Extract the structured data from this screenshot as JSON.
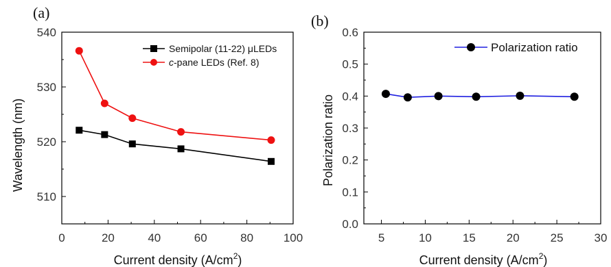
{
  "chart_data": [
    {
      "type": "line",
      "panel_label": "(a)",
      "xlabel_prefix": "Current density (A/cm",
      "xlabel_sup": "2",
      "xlabel_suffix": ")",
      "ylabel": "Wavelength (nm)",
      "xlim": [
        0,
        100
      ],
      "ylim": [
        505,
        540
      ],
      "xticks": [
        0,
        20,
        40,
        60,
        80,
        100
      ],
      "yticks": [
        510,
        520,
        530,
        540
      ],
      "grid": false,
      "legend_position": "top-right",
      "series": [
        {
          "name": "Semipolar (11-22) μLEDs",
          "marker": "square",
          "color": "#000000",
          "x": [
            7.5,
            18.5,
            30.5,
            51.5,
            90.5
          ],
          "y": [
            522.1,
            521.3,
            519.6,
            518.7,
            516.4
          ]
        },
        {
          "name_italic": "c",
          "name": "-pane LEDs (Ref. 8)",
          "marker": "circle",
          "color": "#ee1111",
          "x": [
            7.5,
            18.5,
            30.5,
            51.5,
            90.5
          ],
          "y": [
            536.6,
            527.0,
            524.3,
            521.8,
            520.3
          ]
        }
      ]
    },
    {
      "type": "line",
      "panel_label": "(b)",
      "xlabel_prefix": "Current density (A/cm",
      "xlabel_sup": "2",
      "xlabel_suffix": ")",
      "ylabel": "Polarization ratio",
      "xlim": [
        3,
        30
      ],
      "ylim": [
        0.0,
        0.6
      ],
      "xticks": [
        5,
        10,
        15,
        20,
        25,
        30
      ],
      "yticks": [
        0.0,
        0.1,
        0.2,
        0.3,
        0.4,
        0.5,
        0.6
      ],
      "ytick_labels": [
        "0.0",
        "0.1",
        "0.2",
        "0.3",
        "0.4",
        "0.5",
        "0.6"
      ],
      "grid": false,
      "legend_position": "top-right",
      "series": [
        {
          "name": "Polarization ratio",
          "marker": "circle",
          "color": "#1f1fe0",
          "marker_color": "#000000",
          "x": [
            5.5,
            8.0,
            11.5,
            15.8,
            20.8,
            27.0
          ],
          "y": [
            0.407,
            0.396,
            0.4,
            0.398,
            0.401,
            0.398
          ]
        }
      ]
    }
  ]
}
